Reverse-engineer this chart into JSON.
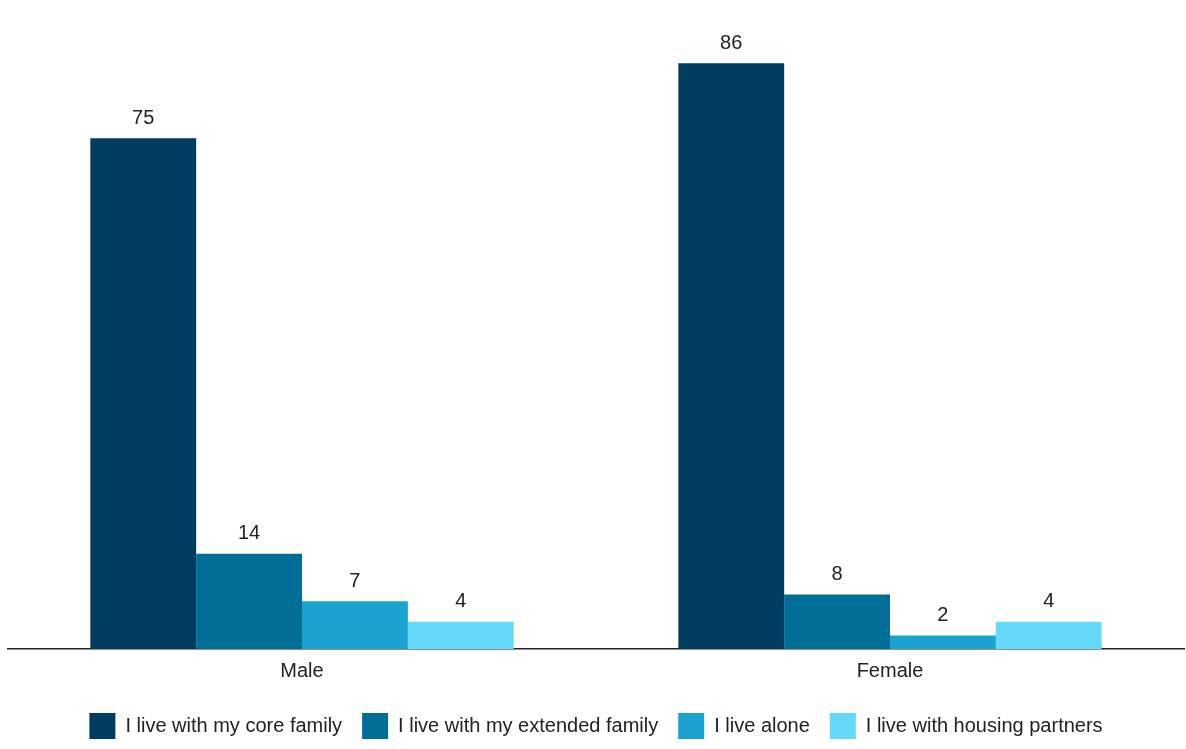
{
  "chart_data": {
    "type": "bar",
    "categories": [
      "Male",
      "Female"
    ],
    "series": [
      {
        "name": "I live with my core family",
        "color": "#003d5f",
        "values": [
          75,
          86
        ]
      },
      {
        "name": "I live with my extended family",
        "color": "#006e96",
        "values": [
          14,
          8
        ]
      },
      {
        "name": "I live alone",
        "color": "#1aa3d0",
        "values": [
          7,
          2
        ]
      },
      {
        "name": "I live with housing partners",
        "color": "#66d9fa",
        "values": [
          4,
          4
        ]
      }
    ],
    "data_labels": true,
    "legend": "bottom",
    "grid": false
  }
}
